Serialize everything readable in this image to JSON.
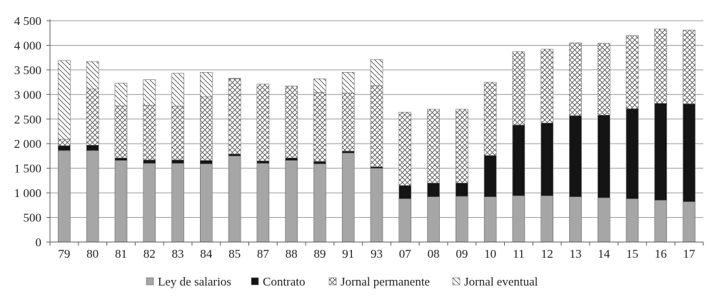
{
  "chart_data": {
    "type": "bar",
    "stacked": true,
    "categories": [
      "79",
      "80",
      "81",
      "82",
      "83",
      "84",
      "85",
      "87",
      "88",
      "89",
      "91",
      "93",
      "07",
      "08",
      "09",
      "10",
      "11",
      "12",
      "13",
      "14",
      "15",
      "16",
      "17"
    ],
    "series": [
      {
        "name": "Ley de salarios",
        "color": "#a6a6a6",
        "values": [
          1860,
          1860,
          1660,
          1600,
          1600,
          1590,
          1750,
          1600,
          1660,
          1590,
          1810,
          1500,
          880,
          920,
          930,
          920,
          940,
          940,
          920,
          900,
          880,
          850,
          820
        ]
      },
      {
        "name": "Contrato",
        "color": "#141414",
        "values": [
          100,
          110,
          50,
          70,
          70,
          70,
          40,
          50,
          50,
          50,
          40,
          30,
          270,
          280,
          270,
          840,
          1440,
          1480,
          1650,
          1680,
          1830,
          1970,
          1990
        ]
      },
      {
        "name": "Jornal permanente",
        "color": "#ffffff",
        "pattern": "crosshatch",
        "values": [
          130,
          1140,
          1060,
          1110,
          1090,
          1290,
          1530,
          1560,
          1460,
          1400,
          1180,
          1650,
          1490,
          1500,
          1500,
          1490,
          1490,
          1500,
          1480,
          1460,
          1490,
          1510,
          1500
        ]
      },
      {
        "name": "Jornal eventual",
        "color": "#ffffff",
        "pattern": "diagonal",
        "values": [
          1600,
          560,
          460,
          520,
          670,
          500,
          10,
          0,
          0,
          280,
          420,
          530,
          0,
          0,
          0,
          0,
          0,
          0,
          0,
          0,
          0,
          0,
          0
        ]
      }
    ],
    "ylim": [
      0,
      4500
    ],
    "yticks": [
      0,
      500,
      1000,
      1500,
      2000,
      2500,
      3000,
      3500,
      4000,
      4500
    ],
    "ytick_labels": [
      "0",
      "500",
      "1 000",
      "1 500",
      "2 000",
      "2 500",
      "3 000",
      "3 500",
      "4 000",
      "4 500"
    ],
    "grid": "horizontal",
    "legend_position": "bottom",
    "title": "",
    "xlabel": "",
    "ylabel": ""
  }
}
